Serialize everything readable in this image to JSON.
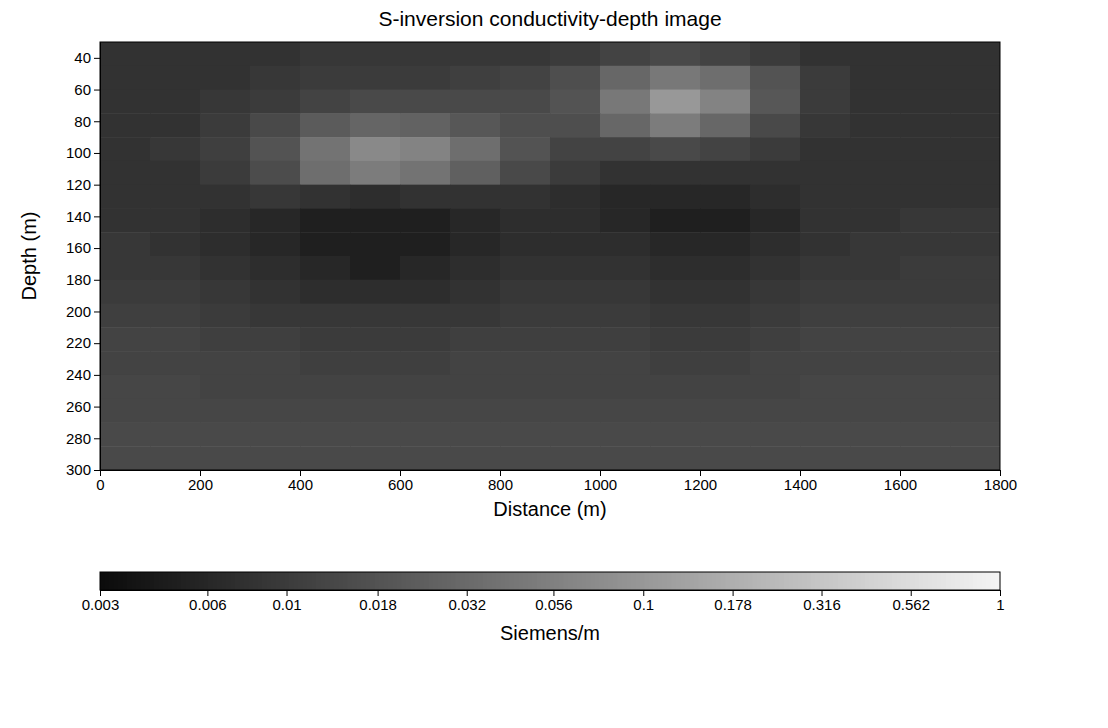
{
  "chart_data": {
    "type": "heatmap",
    "title": "S-inversion conductivity-depth image",
    "x_label": "Distance  (m)",
    "y_label": "Depth (m)",
    "xlim": [
      0,
      1800
    ],
    "xticks": [
      0,
      200,
      400,
      600,
      800,
      1000,
      1200,
      1400,
      1600,
      1800
    ],
    "ylim": [
      30,
      300
    ],
    "yticks": [
      40,
      60,
      80,
      100,
      120,
      140,
      160,
      180,
      200,
      220,
      240,
      260,
      280,
      300
    ],
    "x": [
      50,
      150,
      250,
      350,
      450,
      550,
      650,
      750,
      850,
      950,
      1050,
      1150,
      1250,
      1350,
      1450,
      1550,
      1650,
      1750
    ],
    "y": [
      37.5,
      52.5,
      67.5,
      82.5,
      97.5,
      112.5,
      127.5,
      142.5,
      157.5,
      172.5,
      187.5,
      202.5,
      217.5,
      232.5,
      247.5,
      262.5,
      277.5,
      292.5
    ],
    "values": [
      [
        0.008,
        0.008,
        0.008,
        0.008,
        0.009,
        0.009,
        0.009,
        0.009,
        0.009,
        0.01,
        0.012,
        0.014,
        0.012,
        0.01,
        0.008,
        0.008,
        0.008,
        0.008
      ],
      [
        0.008,
        0.008,
        0.008,
        0.009,
        0.01,
        0.01,
        0.01,
        0.011,
        0.012,
        0.016,
        0.03,
        0.045,
        0.035,
        0.018,
        0.01,
        0.008,
        0.008,
        0.008
      ],
      [
        0.008,
        0.008,
        0.009,
        0.01,
        0.012,
        0.014,
        0.014,
        0.014,
        0.014,
        0.018,
        0.045,
        0.1,
        0.06,
        0.02,
        0.01,
        0.008,
        0.008,
        0.008
      ],
      [
        0.008,
        0.008,
        0.01,
        0.014,
        0.022,
        0.028,
        0.026,
        0.02,
        0.016,
        0.016,
        0.03,
        0.05,
        0.03,
        0.014,
        0.009,
        0.008,
        0.008,
        0.008
      ],
      [
        0.008,
        0.009,
        0.011,
        0.018,
        0.04,
        0.07,
        0.06,
        0.035,
        0.018,
        0.012,
        0.012,
        0.014,
        0.012,
        0.01,
        0.008,
        0.008,
        0.008,
        0.008
      ],
      [
        0.008,
        0.008,
        0.01,
        0.015,
        0.035,
        0.05,
        0.04,
        0.025,
        0.014,
        0.01,
        0.008,
        0.008,
        0.008,
        0.008,
        0.008,
        0.008,
        0.008,
        0.008
      ],
      [
        0.008,
        0.008,
        0.008,
        0.009,
        0.008,
        0.007,
        0.008,
        0.008,
        0.008,
        0.007,
        0.006,
        0.006,
        0.006,
        0.007,
        0.008,
        0.008,
        0.008,
        0.008
      ],
      [
        0.008,
        0.008,
        0.007,
        0.006,
        0.005,
        0.005,
        0.005,
        0.006,
        0.007,
        0.007,
        0.006,
        0.005,
        0.005,
        0.006,
        0.008,
        0.008,
        0.009,
        0.009
      ],
      [
        0.009,
        0.008,
        0.007,
        0.006,
        0.005,
        0.005,
        0.005,
        0.006,
        0.007,
        0.007,
        0.007,
        0.006,
        0.006,
        0.007,
        0.008,
        0.009,
        0.009,
        0.009
      ],
      [
        0.009,
        0.009,
        0.008,
        0.007,
        0.006,
        0.005,
        0.006,
        0.007,
        0.008,
        0.008,
        0.008,
        0.007,
        0.007,
        0.008,
        0.009,
        0.009,
        0.01,
        0.01
      ],
      [
        0.01,
        0.01,
        0.009,
        0.008,
        0.007,
        0.007,
        0.007,
        0.008,
        0.009,
        0.009,
        0.009,
        0.008,
        0.008,
        0.009,
        0.01,
        0.01,
        0.01,
        0.01
      ],
      [
        0.011,
        0.011,
        0.01,
        0.009,
        0.009,
        0.009,
        0.009,
        0.009,
        0.01,
        0.01,
        0.01,
        0.009,
        0.009,
        0.01,
        0.011,
        0.011,
        0.011,
        0.011
      ],
      [
        0.012,
        0.012,
        0.011,
        0.011,
        0.01,
        0.01,
        0.01,
        0.011,
        0.011,
        0.011,
        0.011,
        0.01,
        0.01,
        0.011,
        0.012,
        0.012,
        0.012,
        0.012
      ],
      [
        0.012,
        0.012,
        0.012,
        0.012,
        0.011,
        0.011,
        0.011,
        0.012,
        0.012,
        0.012,
        0.012,
        0.011,
        0.011,
        0.012,
        0.012,
        0.012,
        0.012,
        0.012
      ],
      [
        0.013,
        0.013,
        0.012,
        0.012,
        0.012,
        0.012,
        0.012,
        0.012,
        0.012,
        0.012,
        0.012,
        0.012,
        0.012,
        0.012,
        0.013,
        0.013,
        0.013,
        0.013
      ],
      [
        0.013,
        0.013,
        0.013,
        0.013,
        0.013,
        0.013,
        0.013,
        0.013,
        0.013,
        0.013,
        0.013,
        0.013,
        0.013,
        0.013,
        0.013,
        0.013,
        0.013,
        0.013
      ],
      [
        0.014,
        0.014,
        0.014,
        0.014,
        0.014,
        0.014,
        0.014,
        0.014,
        0.014,
        0.014,
        0.014,
        0.014,
        0.014,
        0.014,
        0.014,
        0.014,
        0.014,
        0.014
      ],
      [
        0.014,
        0.014,
        0.014,
        0.014,
        0.014,
        0.014,
        0.014,
        0.014,
        0.014,
        0.014,
        0.014,
        0.014,
        0.014,
        0.014,
        0.014,
        0.014,
        0.014,
        0.014
      ]
    ],
    "colorbar": {
      "range": [
        0.003,
        1
      ],
      "ticks": [
        0.003,
        0.006,
        0.01,
        0.018,
        0.032,
        0.056,
        0.1,
        0.178,
        0.316,
        0.562,
        1
      ],
      "label": "Siemens/m"
    },
    "log": "colorbar"
  }
}
